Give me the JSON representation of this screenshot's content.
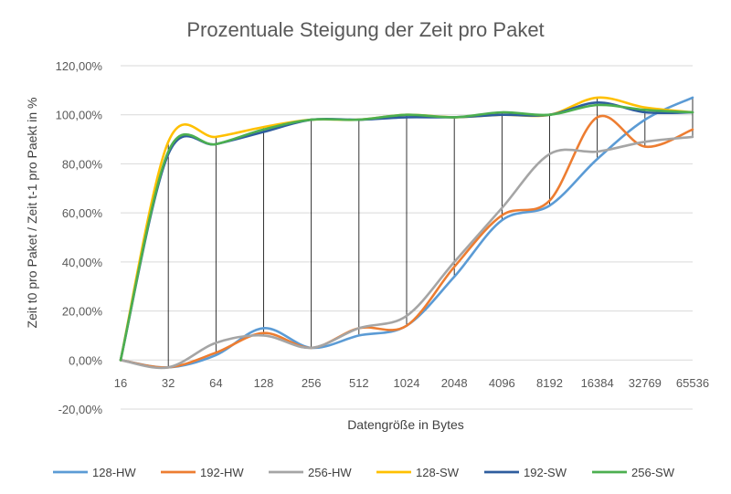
{
  "chart_data": {
    "type": "line",
    "title": "Prozentuale Steigung der Zeit pro Paket",
    "xlabel": "Datengröße  in Bytes",
    "ylabel": "Zeit t0 pro Paket / Zeit t-1 pro Paekt in %",
    "categories": [
      "16",
      "32",
      "64",
      "128",
      "256",
      "512",
      "1024",
      "2048",
      "4096",
      "8192",
      "16384",
      "32769",
      "65536"
    ],
    "ylim": [
      -20,
      120
    ],
    "yticks": [
      -20,
      0,
      20,
      40,
      60,
      80,
      100,
      120
    ],
    "ytick_labels": [
      "-20,00%",
      "0,00%",
      "20,00%",
      "40,00%",
      "60,00%",
      "80,00%",
      "100,00%",
      "120,00%"
    ],
    "grid": true,
    "legend_position": "bottom",
    "drop_lines": true,
    "series": [
      {
        "name": "128-HW",
        "color": "#5B9BD5",
        "values": [
          0,
          -3,
          2,
          13,
          5,
          10,
          14,
          34,
          57,
          63,
          82,
          98,
          107
        ]
      },
      {
        "name": "192-HW",
        "color": "#ED7D31",
        "values": [
          0,
          -3,
          3,
          11,
          5,
          13,
          14,
          38,
          59,
          65,
          99,
          87,
          94
        ]
      },
      {
        "name": "256-HW",
        "color": "#A5A5A5",
        "values": [
          0,
          -3,
          7,
          10,
          5,
          13,
          18,
          40,
          62,
          84,
          85,
          89,
          91
        ]
      },
      {
        "name": "128-SW",
        "color": "#FFC000",
        "values": [
          0,
          89,
          91,
          95,
          98,
          98,
          100,
          99,
          100,
          100,
          107,
          103,
          101
        ]
      },
      {
        "name": "192-SW",
        "color": "#2E5D9E",
        "values": [
          0,
          84,
          88,
          93,
          98,
          98,
          99,
          99,
          100,
          100,
          105,
          101,
          101
        ]
      },
      {
        "name": "256-SW",
        "color": "#4CAF50",
        "values": [
          0,
          85,
          88,
          94,
          98,
          98,
          100,
          99,
          101,
          100,
          104,
          102,
          101
        ]
      }
    ]
  }
}
